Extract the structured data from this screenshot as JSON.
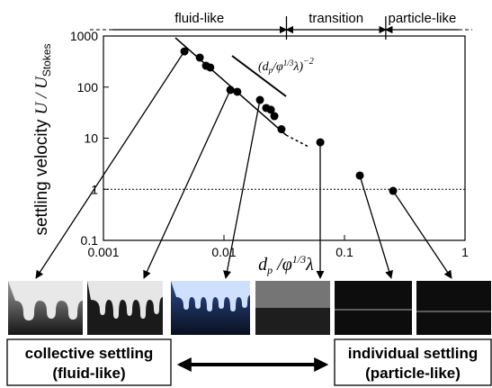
{
  "chart_data": {
    "type": "scatter",
    "ylabel": {
      "text": "settling velocity",
      "math": "U / U",
      "sub": "Stokes"
    },
    "xlabel": {
      "d": "d",
      "sub": "p",
      "mid": " /φ",
      "sup": "1/3",
      "end": "λ"
    },
    "annotation": {
      "open": "(d",
      "sub": "p",
      "mid": "/φ",
      "sup": "1/3",
      "end": "λ)",
      "exp": "−2"
    },
    "regions": [
      "fluid-like",
      "transition",
      "particle-like"
    ],
    "region_boundaries": [
      0.033,
      0.22
    ],
    "x": [
      0.0047,
      0.0063,
      0.0071,
      0.0077,
      0.0113,
      0.0129,
      0.0199,
      0.0224,
      0.0245,
      0.0262,
      0.03,
      0.063,
      0.134,
      0.253
    ],
    "values": [
      500,
      378,
      262,
      242,
      88,
      81,
      56,
      39,
      36,
      27,
      15,
      8.3,
      1.86,
      0.93
    ],
    "color": "#000000",
    "xlim": [
      0.001,
      1
    ],
    "ylim": [
      0.1,
      1000
    ],
    "xticks": [
      0.001,
      0.01,
      0.1,
      1
    ],
    "yticks": [
      0.1,
      1,
      10,
      100,
      1000
    ],
    "xscale": "log",
    "yscale": "log",
    "reference_line": 1,
    "boxes": [
      {
        "line1": "collective settling",
        "line2": "(fluid-like)"
      },
      {
        "line1": "individual settling",
        "line2": "(particle-like)"
      }
    ]
  }
}
